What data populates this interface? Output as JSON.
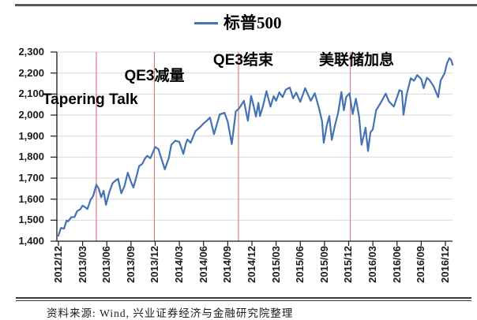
{
  "legend": {
    "label": "标普500"
  },
  "footer": {
    "source": "资料来源: Wind, 兴业证券经济与金融研究院整理"
  },
  "colors": {
    "series_blue": "#4472B4",
    "event_line_red": "#DC7D7D",
    "gridline_gray": "#D9D9D9",
    "axis_black": "#1a1a1a"
  },
  "chart_data": {
    "type": "line",
    "title": "",
    "legend": "标普500",
    "grid": "horizontal",
    "legend_position": "top-center",
    "x_axis": {
      "unit": "year/month",
      "months_per_tick": 3,
      "tick_labels": [
        "2012/12",
        "2013/03",
        "2013/06",
        "2013/09",
        "2013/12",
        "2014/03",
        "2014/06",
        "2014/09",
        "2014/12",
        "2015/03",
        "2015/06",
        "2015/09",
        "2015/12",
        "2016/03",
        "2016/06",
        "2016/09",
        "2016/12"
      ]
    },
    "y_axis": {
      "min": 1400,
      "max": 2300,
      "step": 100,
      "tick_values": [
        1400,
        1500,
        1600,
        1700,
        1800,
        1900,
        2000,
        2100,
        2200,
        2300
      ]
    },
    "events": [
      {
        "label": "Tapering Talk",
        "month": 4.7
      },
      {
        "label": "QE3减量",
        "month": 11.9
      },
      {
        "label": "QE3结束",
        "month": 22.33
      },
      {
        "label": "美联储加息",
        "month": 36.2
      }
    ],
    "series": [
      {
        "name": "标普500",
        "points_format": "[months_since_2012_12, index_value]",
        "points": [
          [
            0,
            1426
          ],
          [
            0.3,
            1463
          ],
          [
            0.7,
            1460
          ],
          [
            1,
            1498
          ],
          [
            1.2,
            1494
          ],
          [
            1.6,
            1514
          ],
          [
            2,
            1515
          ],
          [
            2.3,
            1542
          ],
          [
            2.7,
            1552
          ],
          [
            3,
            1569
          ],
          [
            3.3,
            1562
          ],
          [
            3.6,
            1553
          ],
          [
            4,
            1598
          ],
          [
            4.3,
            1614
          ],
          [
            4.7,
            1669
          ],
          [
            5,
            1650
          ],
          [
            5.3,
            1609
          ],
          [
            5.6,
            1640
          ],
          [
            5.9,
            1573
          ],
          [
            6.3,
            1632
          ],
          [
            6.7,
            1675
          ],
          [
            7,
            1686
          ],
          [
            7.4,
            1697
          ],
          [
            7.8,
            1628
          ],
          [
            8.2,
            1663
          ],
          [
            8.6,
            1726
          ],
          [
            9,
            1682
          ],
          [
            9.3,
            1655
          ],
          [
            9.7,
            1710
          ],
          [
            10,
            1757
          ],
          [
            10.4,
            1768
          ],
          [
            10.7,
            1791
          ],
          [
            11,
            1806
          ],
          [
            11.4,
            1795
          ],
          [
            12,
            1848
          ],
          [
            12.4,
            1838
          ],
          [
            13.2,
            1742
          ],
          [
            13.7,
            1797
          ],
          [
            14,
            1859
          ],
          [
            14.5,
            1878
          ],
          [
            15,
            1872
          ],
          [
            15.5,
            1815
          ],
          [
            15.8,
            1864
          ],
          [
            16,
            1884
          ],
          [
            16.4,
            1868
          ],
          [
            17,
            1924
          ],
          [
            17.5,
            1940
          ],
          [
            18,
            1960
          ],
          [
            18.4,
            1973
          ],
          [
            18.8,
            1988
          ],
          [
            19.3,
            1909
          ],
          [
            20,
            2003
          ],
          [
            20.6,
            2011
          ],
          [
            21,
            1968
          ],
          [
            21.5,
            1862
          ],
          [
            22,
            2018
          ],
          [
            22.4,
            2031
          ],
          [
            23,
            2068
          ],
          [
            23.5,
            1973
          ],
          [
            23.9,
            2091
          ],
          [
            24.2,
            2046
          ],
          [
            24.5,
            1993
          ],
          [
            24.8,
            2058
          ],
          [
            25,
            1995
          ],
          [
            25.4,
            2047
          ],
          [
            25.8,
            2114
          ],
          [
            26.3,
            2040
          ],
          [
            26.7,
            2090
          ],
          [
            27,
            2068
          ],
          [
            27.4,
            2108
          ],
          [
            27.8,
            2085
          ],
          [
            28.2,
            2121
          ],
          [
            28.7,
            2131
          ],
          [
            29.1,
            2080
          ],
          [
            29.5,
            2107
          ],
          [
            30,
            2063
          ],
          [
            30.6,
            2128
          ],
          [
            31.3,
            2068
          ],
          [
            31.8,
            2104
          ],
          [
            32.3,
            2036
          ],
          [
            32.7,
            1971
          ],
          [
            32.9,
            1868
          ],
          [
            33.3,
            1952
          ],
          [
            33.6,
            1995
          ],
          [
            33.9,
            1882
          ],
          [
            34.3,
            1951
          ],
          [
            34.7,
            2011
          ],
          [
            35.1,
            2110
          ],
          [
            35.4,
            2023
          ],
          [
            35.7,
            2086
          ],
          [
            36.1,
            2103
          ],
          [
            36.5,
            2005
          ],
          [
            36.9,
            2078
          ],
          [
            37.3,
            1990
          ],
          [
            37.6,
            1859
          ],
          [
            37.9,
            1906
          ],
          [
            38.1,
            1940
          ],
          [
            38.4,
            1829
          ],
          [
            38.7,
            1918
          ],
          [
            39,
            1932
          ],
          [
            39.4,
            2022
          ],
          [
            40,
            2060
          ],
          [
            40.6,
            2102
          ],
          [
            41,
            2065
          ],
          [
            41.6,
            2040
          ],
          [
            42.3,
            2119
          ],
          [
            42.6,
            2113
          ],
          [
            42.8,
            2001
          ],
          [
            43.2,
            2099
          ],
          [
            43.7,
            2175
          ],
          [
            44.1,
            2163
          ],
          [
            44.5,
            2190
          ],
          [
            45,
            2171
          ],
          [
            45.3,
            2128
          ],
          [
            45.7,
            2177
          ],
          [
            46,
            2168
          ],
          [
            46.5,
            2140
          ],
          [
            47.1,
            2085
          ],
          [
            47.4,
            2164
          ],
          [
            47.9,
            2199
          ],
          [
            48.2,
            2246
          ],
          [
            48.5,
            2271
          ],
          [
            48.7,
            2263
          ],
          [
            48.9,
            2239
          ]
        ]
      }
    ]
  }
}
